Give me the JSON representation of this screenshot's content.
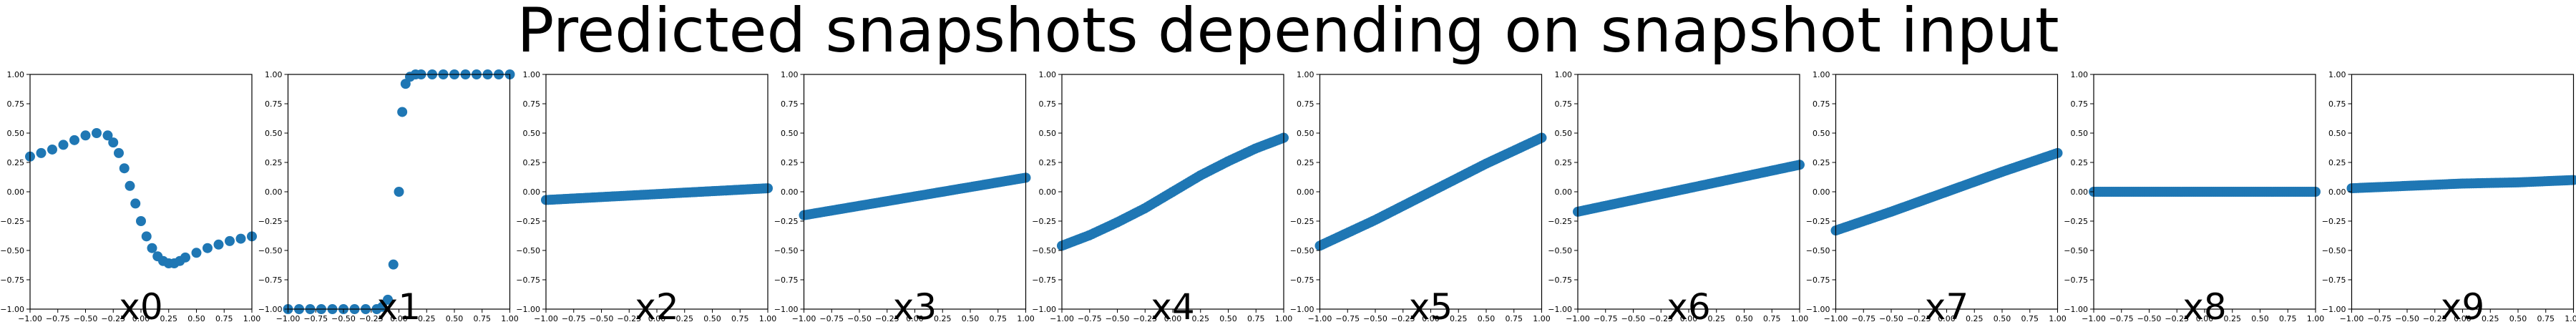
{
  "title": "Predicted snapshots depending on snapshot input",
  "style": {
    "marker_color": "#1f77b4",
    "axes_color": "#000000"
  },
  "chart_data": [
    {
      "type": "scatter",
      "xlabel": "x0",
      "xlim": [
        -1,
        1
      ],
      "ylim": [
        -1,
        1
      ],
      "xticks": [
        "−1.00",
        "−0.75",
        "−0.50",
        "−0.25",
        "0.00",
        "0.25",
        "0.50",
        "0.75",
        "1.00"
      ],
      "yticks": [
        "−1.00",
        "−0.75",
        "−0.50",
        "−0.25",
        "0.00",
        "0.25",
        "0.50",
        "0.75",
        "1.00"
      ],
      "x": [
        -1.0,
        -0.9,
        -0.8,
        -0.7,
        -0.6,
        -0.5,
        -0.4,
        -0.3,
        -0.25,
        -0.2,
        -0.15,
        -0.1,
        -0.05,
        0.0,
        0.05,
        0.1,
        0.15,
        0.2,
        0.25,
        0.3,
        0.35,
        0.4,
        0.5,
        0.6,
        0.7,
        0.8,
        0.9,
        1.0
      ],
      "y": [
        0.3,
        0.33,
        0.36,
        0.4,
        0.44,
        0.48,
        0.5,
        0.48,
        0.42,
        0.33,
        0.2,
        0.05,
        -0.1,
        -0.25,
        -0.38,
        -0.48,
        -0.55,
        -0.59,
        -0.61,
        -0.61,
        -0.59,
        -0.56,
        -0.52,
        -0.48,
        -0.45,
        -0.42,
        -0.4,
        -0.38
      ]
    },
    {
      "type": "scatter",
      "xlabel": "x1",
      "xlim": [
        -1,
        1
      ],
      "ylim": [
        -1,
        1
      ],
      "xticks": [
        "−1.00",
        "−0.75",
        "−0.50",
        "−0.25",
        "0.00",
        "0.25",
        "0.50",
        "0.75",
        "1.00"
      ],
      "yticks": [
        "−1.00",
        "−0.75",
        "−0.50",
        "−0.25",
        "0.00",
        "0.25",
        "0.50",
        "0.75",
        "1.00"
      ],
      "x": [
        -1.0,
        -0.9,
        -0.8,
        -0.7,
        -0.6,
        -0.5,
        -0.4,
        -0.3,
        -0.2,
        -0.15,
        -0.1,
        -0.05,
        0.0,
        0.03,
        0.06,
        0.1,
        0.15,
        0.2,
        0.3,
        0.4,
        0.5,
        0.6,
        0.7,
        0.8,
        0.9,
        1.0
      ],
      "y": [
        -1.0,
        -1.0,
        -1.0,
        -1.0,
        -1.0,
        -1.0,
        -1.0,
        -1.0,
        -1.0,
        -0.98,
        -0.92,
        -0.62,
        0.0,
        0.68,
        0.92,
        0.98,
        1.0,
        1.0,
        1.0,
        1.0,
        1.0,
        1.0,
        1.0,
        1.0,
        1.0,
        1.0
      ]
    },
    {
      "type": "scatter",
      "xlabel": "x2",
      "xlim": [
        -1,
        1
      ],
      "ylim": [
        -1,
        1
      ],
      "xticks": [
        "−1.00",
        "−0.75",
        "−0.50",
        "−0.25",
        "0.00",
        "0.25",
        "0.50",
        "0.75",
        "1.00"
      ],
      "yticks": [
        "−1.00",
        "−0.75",
        "−0.50",
        "−0.25",
        "0.00",
        "0.25",
        "0.50",
        "0.75",
        "1.00"
      ],
      "x": [
        -1.0,
        -0.5,
        0.0,
        0.5,
        1.0
      ],
      "y": [
        -0.07,
        -0.045,
        -0.02,
        0.005,
        0.03
      ]
    },
    {
      "type": "scatter",
      "xlabel": "x3",
      "xlim": [
        -1,
        1
      ],
      "ylim": [
        -1,
        1
      ],
      "xticks": [
        "−1.00",
        "−0.75",
        "−0.50",
        "−0.25",
        "0.00",
        "0.25",
        "0.50",
        "0.75",
        "1.00"
      ],
      "yticks": [
        "−1.00",
        "−0.75",
        "−0.50",
        "−0.25",
        "0.00",
        "0.25",
        "0.50",
        "0.75",
        "1.00"
      ],
      "x": [
        -1.0,
        -0.5,
        0.0,
        0.5,
        1.0
      ],
      "y": [
        -0.2,
        -0.12,
        -0.04,
        0.04,
        0.12
      ]
    },
    {
      "type": "scatter",
      "xlabel": "x4",
      "xlim": [
        -1,
        1
      ],
      "ylim": [
        -1,
        1
      ],
      "xticks": [
        "−1.00",
        "−0.75",
        "−0.50",
        "−0.25",
        "0.00",
        "0.25",
        "0.50",
        "0.75",
        "1.00"
      ],
      "yticks": [
        "−1.00",
        "−0.75",
        "−0.50",
        "−0.25",
        "0.00",
        "0.25",
        "0.50",
        "0.75",
        "1.00"
      ],
      "x": [
        -1.0,
        -0.75,
        -0.5,
        -0.25,
        0.0,
        0.25,
        0.5,
        0.75,
        1.0
      ],
      "y": [
        -0.46,
        -0.37,
        -0.26,
        -0.14,
        0.0,
        0.14,
        0.26,
        0.37,
        0.46
      ]
    },
    {
      "type": "scatter",
      "xlabel": "x5",
      "xlim": [
        -1,
        1
      ],
      "ylim": [
        -1,
        1
      ],
      "xticks": [
        "−1.00",
        "−0.75",
        "−0.50",
        "−0.25",
        "0.00",
        "0.25",
        "0.50",
        "0.75",
        "1.00"
      ],
      "yticks": [
        "−1.00",
        "−0.75",
        "−0.50",
        "−0.25",
        "0.00",
        "0.25",
        "0.50",
        "0.75",
        "1.00"
      ],
      "x": [
        -1.0,
        -0.5,
        0.0,
        0.5,
        1.0
      ],
      "y": [
        -0.46,
        -0.24,
        0.0,
        0.24,
        0.46
      ]
    },
    {
      "type": "scatter",
      "xlabel": "x6",
      "xlim": [
        -1,
        1
      ],
      "ylim": [
        -1,
        1
      ],
      "xticks": [
        "−1.00",
        "−0.75",
        "−0.50",
        "−0.25",
        "0.00",
        "0.25",
        "0.50",
        "0.75",
        "1.00"
      ],
      "yticks": [
        "−1.00",
        "−0.75",
        "−0.50",
        "−0.25",
        "0.00",
        "0.25",
        "0.50",
        "0.75",
        "1.00"
      ],
      "x": [
        -1.0,
        -0.5,
        0.0,
        0.5,
        1.0
      ],
      "y": [
        -0.17,
        -0.07,
        0.03,
        0.13,
        0.23
      ]
    },
    {
      "type": "scatter",
      "xlabel": "x7",
      "xlim": [
        -1,
        1
      ],
      "ylim": [
        -1,
        1
      ],
      "xticks": [
        "−1.00",
        "−0.75",
        "−0.50",
        "−0.25",
        "0.00",
        "0.25",
        "0.50",
        "0.75",
        "1.00"
      ],
      "yticks": [
        "−1.00",
        "−0.75",
        "−0.50",
        "−0.25",
        "0.00",
        "0.25",
        "0.50",
        "0.75",
        "1.00"
      ],
      "x": [
        -1.0,
        -0.5,
        0.0,
        0.5,
        1.0
      ],
      "y": [
        -0.33,
        -0.17,
        0.0,
        0.17,
        0.33
      ]
    },
    {
      "type": "scatter",
      "xlabel": "x8",
      "xlim": [
        -1,
        1
      ],
      "ylim": [
        -1,
        1
      ],
      "xticks": [
        "−1.00",
        "−0.75",
        "−0.50",
        "−0.25",
        "0.00",
        "0.25",
        "0.50",
        "0.75",
        "1.00"
      ],
      "yticks": [
        "−1.00",
        "−0.75",
        "−0.50",
        "−0.25",
        "0.00",
        "0.25",
        "0.50",
        "0.75",
        "1.00"
      ],
      "x": [
        -1.0,
        -0.5,
        0.0,
        0.5,
        1.0
      ],
      "y": [
        0.0,
        0.0,
        0.0,
        0.0,
        0.0
      ]
    },
    {
      "type": "scatter",
      "xlabel": "x9",
      "xlim": [
        -1,
        1
      ],
      "ylim": [
        -1,
        1
      ],
      "xticks": [
        "−1.00",
        "−0.75",
        "−0.50",
        "−0.25",
        "0.00",
        "0.25",
        "0.50",
        "0.75",
        "1.00"
      ],
      "yticks": [
        "−1.00",
        "−0.75",
        "−0.50",
        "−0.25",
        "0.00",
        "0.25",
        "0.50",
        "0.75",
        "1.00"
      ],
      "x": [
        -1.0,
        -0.5,
        0.0,
        0.5,
        1.0
      ],
      "y": [
        0.03,
        0.05,
        0.07,
        0.08,
        0.1
      ]
    }
  ]
}
